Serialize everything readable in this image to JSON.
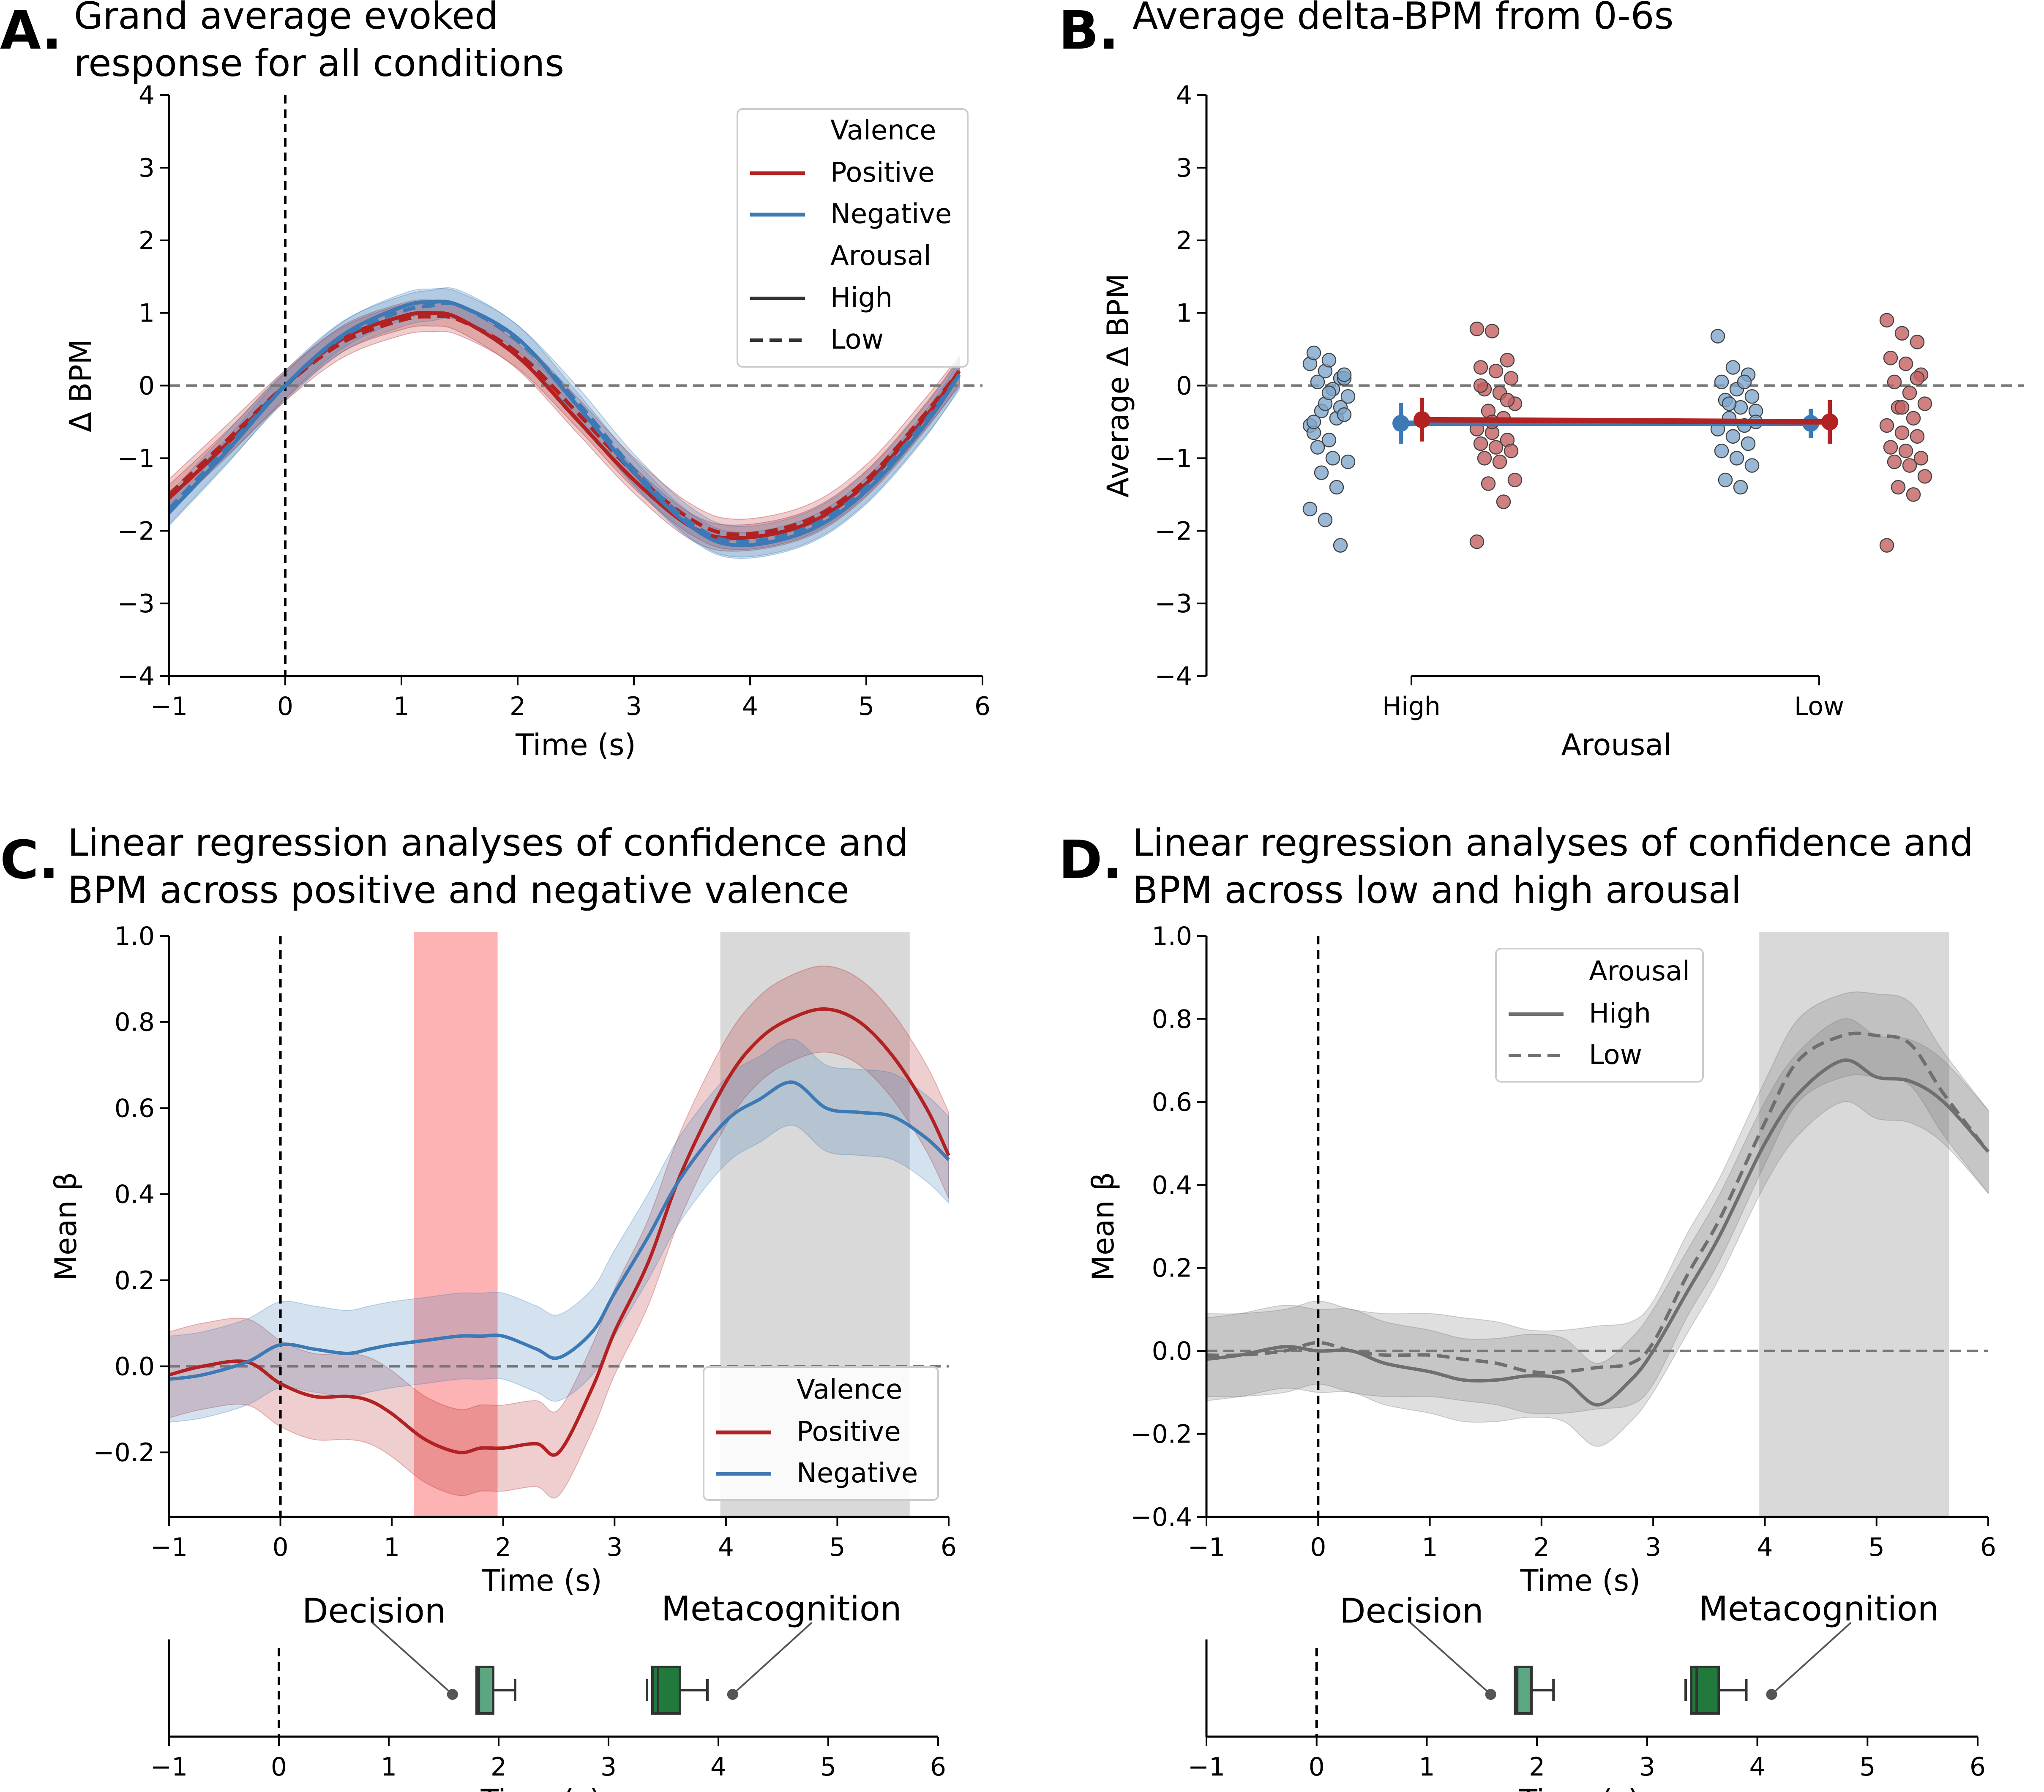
{
  "panels": {
    "A": {
      "letter": "A.",
      "title_line1": "Grand average evoked",
      "title_line2": "response for all conditions"
    },
    "B": {
      "letter": "B.",
      "title_line1": "Average delta-BPM from 0-6s"
    },
    "C": {
      "letter": "C.",
      "title_line1": "Linear regression analyses of confidence and",
      "title_line2": "BPM across positive and negative valence"
    },
    "D": {
      "letter": "D.",
      "title_line1": "Linear regression analyses of confidence and",
      "title_line2": "BPM across low and high arousal"
    }
  },
  "legend_A": {
    "valence_title": "Valence",
    "positive": "Positive",
    "negative": "Negative",
    "arousal_title": "Arousal",
    "high": "High",
    "low": "Low"
  },
  "legend_C": {
    "title": "Valence",
    "positive": "Positive",
    "negative": "Negative"
  },
  "legend_D": {
    "title": "Arousal",
    "high": "High",
    "low": "Low"
  },
  "annotations": {
    "decision": "Decision",
    "metacognition": "Metacognition"
  },
  "colors": {
    "positive": "#b22222",
    "negative": "#3d7ab5",
    "grey_line": "#6f6f6f",
    "box_decision": "#5aa781",
    "box_meta": "#1f7a3c",
    "highlight_red": "#fdb3b3",
    "highlight_grey": "#d9d9d9",
    "scatter_blue": "#7ea6cc",
    "scatter_red": "#c46060"
  },
  "chart_data": [
    {
      "panel": "A",
      "type": "line",
      "xlabel": "Time (s)",
      "ylabel": "Δ BPM",
      "xlim": [
        -1,
        6
      ],
      "ylim": [
        -4,
        4
      ],
      "xticks": [
        -1,
        0,
        1,
        2,
        3,
        4,
        5,
        6
      ],
      "xtick_labels": [
        "−1",
        "0",
        "1",
        "2",
        "3",
        "4",
        "5",
        "6"
      ],
      "yticks": [
        -4,
        -3,
        -2,
        -1,
        0,
        1,
        2,
        3,
        4
      ],
      "ytick_labels": [
        "−4",
        "−3",
        "−2",
        "−1",
        "0",
        "1",
        "2",
        "3",
        "4"
      ],
      "x": [
        -1,
        -0.5,
        0,
        0.5,
        1,
        1.25,
        1.5,
        2,
        2.5,
        3,
        3.5,
        3.9,
        4.5,
        5,
        5.5,
        5.8
      ],
      "series": [
        {
          "name": "Positive / High",
          "color": "positive",
          "dash": false,
          "values": [
            -1.55,
            -0.8,
            0,
            0.65,
            0.95,
            1.0,
            0.92,
            0.4,
            -0.45,
            -1.3,
            -1.95,
            -2.1,
            -1.9,
            -1.35,
            -0.45,
            0.2
          ]
        },
        {
          "name": "Positive / Low",
          "color": "positive",
          "dash": true,
          "values": [
            -1.5,
            -0.75,
            0,
            0.6,
            0.9,
            0.95,
            0.9,
            0.45,
            -0.35,
            -1.2,
            -1.85,
            -2.05,
            -1.85,
            -1.3,
            -0.4,
            0.2
          ]
        },
        {
          "name": "Negative / High",
          "color": "negative",
          "dash": false,
          "values": [
            -1.75,
            -0.9,
            0,
            0.7,
            1.08,
            1.15,
            1.1,
            0.65,
            -0.25,
            -1.2,
            -1.95,
            -2.2,
            -2.0,
            -1.45,
            -0.55,
            0.15
          ]
        },
        {
          "name": "Negative / Low",
          "color": "negative",
          "dash": true,
          "values": [
            -1.7,
            -0.85,
            0,
            0.68,
            1.02,
            1.1,
            1.1,
            0.62,
            -0.2,
            -1.15,
            -1.9,
            -2.15,
            -1.95,
            -1.4,
            -0.5,
            0.15
          ]
        }
      ]
    },
    {
      "panel": "B",
      "type": "scatter",
      "xlabel": "Arousal",
      "ylabel": "Average Δ BPM",
      "ylim": [
        -4,
        4
      ],
      "yticks": [
        -4,
        -3,
        -2,
        -1,
        0,
        1,
        2,
        3,
        4
      ],
      "ytick_labels": [
        "−4",
        "−3",
        "−2",
        "−1",
        "0",
        "1",
        "2",
        "3",
        "4"
      ],
      "categories": [
        "High",
        "Low"
      ],
      "means": {
        "negative": {
          "values": [
            -0.52,
            -0.52
          ],
          "err": [
            0.28,
            0.2
          ]
        },
        "positive": {
          "values": [
            -0.47,
            -0.5
          ],
          "err": [
            0.3,
            0.3
          ]
        }
      },
      "points": {
        "high_negative": [
          0.3,
          0.2,
          0.1,
          0.45,
          0.35,
          0.1,
          0.05,
          -0.05,
          -0.15,
          -0.35,
          -0.45,
          -0.55,
          -0.25,
          -0.3,
          -0.65,
          -0.75,
          -0.4,
          -0.85,
          -1.0,
          -1.05,
          -1.2,
          -1.4,
          -1.7,
          -1.85,
          -2.2,
          -0.5,
          -0.1,
          0.15
        ],
        "high_positive": [
          0.78,
          0.75,
          0.35,
          0.25,
          0.2,
          0.1,
          -0.05,
          -0.1,
          -0.25,
          -0.35,
          -0.45,
          -0.6,
          -0.65,
          -0.75,
          -0.8,
          -0.85,
          -0.9,
          -1.0,
          -1.05,
          -1.3,
          -1.35,
          -1.6,
          -2.15,
          -0.5,
          -0.2,
          0.0
        ],
        "low_negative": [
          0.68,
          0.25,
          0.15,
          0.05,
          -0.05,
          -0.15,
          -0.2,
          -0.3,
          -0.35,
          -0.45,
          -0.55,
          -0.6,
          -0.7,
          -0.8,
          -0.9,
          -1.0,
          -1.1,
          -1.3,
          -1.4,
          -0.5,
          -0.25,
          0.05
        ],
        "low_positive": [
          0.9,
          0.72,
          0.6,
          0.38,
          0.3,
          0.15,
          0.05,
          -0.1,
          -0.25,
          -0.3,
          -0.45,
          -0.55,
          -0.65,
          -0.7,
          -0.85,
          -0.9,
          -1.0,
          -1.05,
          -1.1,
          -1.25,
          -1.4,
          -1.5,
          -2.2,
          -0.3,
          0.1
        ]
      }
    },
    {
      "panel": "C",
      "type": "line",
      "xlabel": "Time (s)",
      "ylabel": "Mean β",
      "xlim": [
        -1,
        6
      ],
      "ylim": [
        -0.35,
        1.0
      ],
      "xticks": [
        -1,
        0,
        1,
        2,
        3,
        4,
        5,
        6
      ],
      "xtick_labels": [
        "−1",
        "0",
        "1",
        "2",
        "3",
        "4",
        "5",
        "6"
      ],
      "yticks": [
        -0.2,
        0.0,
        0.2,
        0.4,
        0.6,
        0.8,
        1.0
      ],
      "ytick_labels": [
        "−0.2",
        "0.0",
        "0.2",
        "0.4",
        "0.6",
        "0.8",
        "1.0"
      ],
      "shaded_regions": [
        {
          "from": 1.2,
          "to": 1.95,
          "color": "highlight_red"
        },
        {
          "from": 3.95,
          "to": 5.65,
          "color": "highlight_grey"
        }
      ],
      "x": [
        -1,
        -0.7,
        -0.3,
        0,
        0.3,
        0.6,
        0.8,
        1.0,
        1.3,
        1.6,
        1.8,
        2.0,
        2.3,
        2.5,
        2.8,
        3.0,
        3.3,
        3.6,
        4.0,
        4.3,
        4.6,
        4.9,
        5.2,
        5.5,
        5.8,
        6.0
      ],
      "series": [
        {
          "name": "Positive",
          "color": "positive",
          "values": [
            -0.02,
            0.0,
            0.01,
            -0.04,
            -0.07,
            -0.07,
            -0.08,
            -0.11,
            -0.17,
            -0.2,
            -0.19,
            -0.19,
            -0.18,
            -0.2,
            -0.05,
            0.08,
            0.24,
            0.45,
            0.66,
            0.76,
            0.81,
            0.83,
            0.8,
            0.72,
            0.6,
            0.49
          ],
          "band": 0.1
        },
        {
          "name": "Negative",
          "color": "negative",
          "values": [
            -0.03,
            -0.02,
            0.01,
            0.05,
            0.04,
            0.03,
            0.04,
            0.05,
            0.06,
            0.07,
            0.07,
            0.07,
            0.04,
            0.02,
            0.08,
            0.17,
            0.3,
            0.44,
            0.57,
            0.62,
            0.66,
            0.6,
            0.59,
            0.58,
            0.53,
            0.48
          ],
          "band": 0.1
        }
      ],
      "reference_line": 0.0,
      "timeline": {
        "xlabel": "Time (s)",
        "decision_box": {
          "q1": 1.8,
          "median": 1.82,
          "q3": 1.95,
          "whisker_low": 1.8,
          "whisker_high": 2.15
        },
        "metacognition_box": {
          "q1": 3.4,
          "median": 3.45,
          "q3": 3.65,
          "whisker_low": 3.35,
          "whisker_high": 3.9
        }
      }
    },
    {
      "panel": "D",
      "type": "line",
      "xlabel": "Time (s)",
      "ylabel": "Mean β",
      "xlim": [
        -1,
        6
      ],
      "ylim": [
        -0.4,
        1.0
      ],
      "xticks": [
        -1,
        0,
        1,
        2,
        3,
        4,
        5,
        6
      ],
      "xtick_labels": [
        "−1",
        "0",
        "1",
        "2",
        "3",
        "4",
        "5",
        "6"
      ],
      "yticks": [
        -0.4,
        -0.2,
        0.0,
        0.2,
        0.4,
        0.6,
        0.8,
        1.0
      ],
      "ytick_labels": [
        "−0.4",
        "−0.2",
        "0.0",
        "0.2",
        "0.4",
        "0.6",
        "0.8",
        "1.0"
      ],
      "shaded_regions": [
        {
          "from": 3.95,
          "to": 5.65,
          "color": "highlight_grey"
        }
      ],
      "x": [
        -1,
        -0.7,
        -0.3,
        0,
        0.3,
        0.6,
        1.0,
        1.3,
        1.6,
        1.9,
        2.2,
        2.5,
        2.8,
        3.0,
        3.3,
        3.6,
        4.0,
        4.3,
        4.7,
        5.0,
        5.3,
        5.6,
        6.0
      ],
      "series": [
        {
          "name": "High",
          "color": "grey_line",
          "dash": false,
          "values": [
            -0.02,
            -0.01,
            0.01,
            0.0,
            0.0,
            -0.03,
            -0.05,
            -0.07,
            -0.07,
            -0.06,
            -0.07,
            -0.13,
            -0.07,
            0.0,
            0.14,
            0.28,
            0.5,
            0.62,
            0.7,
            0.66,
            0.65,
            0.6,
            0.48
          ],
          "band": 0.1
        },
        {
          "name": "Low",
          "color": "grey_line",
          "dash": true,
          "values": [
            -0.01,
            -0.01,
            0.0,
            0.02,
            0.0,
            -0.01,
            -0.01,
            -0.02,
            -0.03,
            -0.05,
            -0.05,
            -0.04,
            -0.03,
            0.02,
            0.18,
            0.32,
            0.55,
            0.7,
            0.76,
            0.76,
            0.74,
            0.62,
            0.48
          ],
          "band": 0.1
        }
      ],
      "reference_line": 0.0,
      "timeline": {
        "xlabel": "Time (s)",
        "decision_box": {
          "q1": 1.8,
          "median": 1.82,
          "q3": 1.95,
          "whisker_low": 1.8,
          "whisker_high": 2.15
        },
        "metacognition_box": {
          "q1": 3.4,
          "median": 3.45,
          "q3": 3.65,
          "whisker_low": 3.35,
          "whisker_high": 3.9
        }
      }
    }
  ]
}
